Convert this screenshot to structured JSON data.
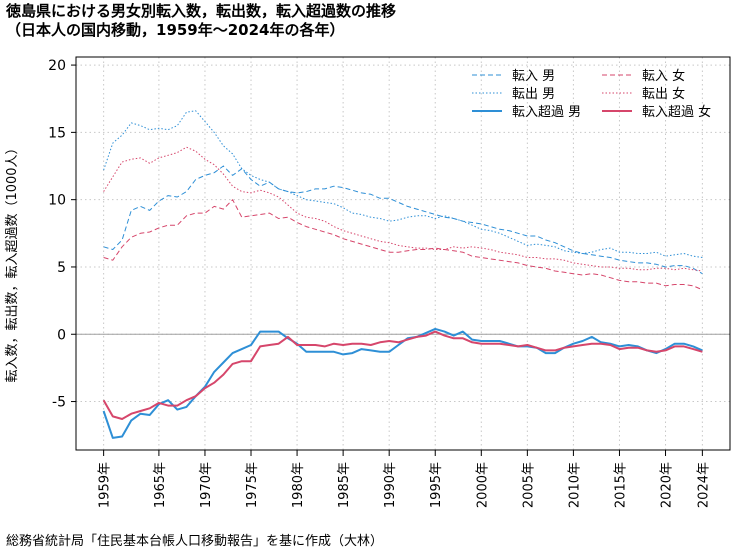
{
  "title_line1": "徳島県における男女別転入数，転出数，転入超過数の推移",
  "title_line2": "（日本人の国内移動，1959年～2024年の各年）",
  "footer": "総務省統計局「住民基本台帳人口移動報告」を基に作成（大林）",
  "chart_data": {
    "type": "line",
    "ylabel": "転入数，転出数，転入超過数（1000人）",
    "xlabel": "",
    "ylim": [
      -8,
      20
    ],
    "yticks": [
      -5,
      0,
      5,
      10,
      15,
      20
    ],
    "xlim": [
      1959,
      2024
    ],
    "xtick_labels": [
      "1959年",
      "1965年",
      "1970年",
      "1975年",
      "1980年",
      "1985年",
      "1990年",
      "1995年",
      "2000年",
      "2005年",
      "2010年",
      "2015年",
      "2020年",
      "2024年"
    ],
    "xtick_years": [
      1959,
      1965,
      1970,
      1975,
      1980,
      1985,
      1990,
      1995,
      2000,
      2005,
      2010,
      2015,
      2020,
      2024
    ],
    "grid": true,
    "legend_position": "top-right",
    "colors": {
      "male": "#2e8fd6",
      "female": "#d6466b"
    },
    "series": [
      {
        "name": "転入 男",
        "sex": "male",
        "style": "dashed",
        "x": [
          1959,
          1960,
          1961,
          1962,
          1963,
          1964,
          1965,
          1966,
          1967,
          1968,
          1969,
          1970,
          1971,
          1972,
          1973,
          1974,
          1975,
          1976,
          1977,
          1978,
          1979,
          1980,
          1981,
          1982,
          1983,
          1984,
          1985,
          1986,
          1987,
          1988,
          1989,
          1990,
          1991,
          1992,
          1993,
          1994,
          1995,
          1996,
          1997,
          1998,
          1999,
          2000,
          2001,
          2002,
          2003,
          2004,
          2005,
          2006,
          2007,
          2008,
          2009,
          2010,
          2011,
          2012,
          2013,
          2014,
          2015,
          2016,
          2017,
          2018,
          2019,
          2020,
          2021,
          2022,
          2023,
          2024
        ],
        "y": [
          6.5,
          6.3,
          7.0,
          9.2,
          9.5,
          9.2,
          9.9,
          10.3,
          10.2,
          10.6,
          11.5,
          11.8,
          12.0,
          12.5,
          11.8,
          12.3,
          11.5,
          11.0,
          11.3,
          10.8,
          10.6,
          10.5,
          10.6,
          10.8,
          10.8,
          11.0,
          10.9,
          10.7,
          10.5,
          10.4,
          10.1,
          10.1,
          9.8,
          9.5,
          9.3,
          9.1,
          8.9,
          8.7,
          8.6,
          8.4,
          8.3,
          8.2,
          8.0,
          7.8,
          7.7,
          7.5,
          7.3,
          7.3,
          7.0,
          6.8,
          6.5,
          6.2,
          6.0,
          5.9,
          5.8,
          5.7,
          5.5,
          5.4,
          5.3,
          5.3,
          5.2,
          5.0,
          5.1,
          5.1,
          4.9,
          4.5
        ]
      },
      {
        "name": "転出 男",
        "sex": "male",
        "style": "dotted",
        "x": [
          1959,
          1960,
          1961,
          1962,
          1963,
          1964,
          1965,
          1966,
          1967,
          1968,
          1969,
          1970,
          1971,
          1972,
          1973,
          1974,
          1975,
          1976,
          1977,
          1978,
          1979,
          1980,
          1981,
          1982,
          1983,
          1984,
          1985,
          1986,
          1987,
          1988,
          1989,
          1990,
          1991,
          1992,
          1993,
          1994,
          1995,
          1996,
          1997,
          1998,
          1999,
          2000,
          2001,
          2002,
          2003,
          2004,
          2005,
          2006,
          2007,
          2008,
          2009,
          2010,
          2011,
          2012,
          2013,
          2014,
          2015,
          2016,
          2017,
          2018,
          2019,
          2020,
          2021,
          2022,
          2023,
          2024
        ],
        "y": [
          12.2,
          14.2,
          14.8,
          15.7,
          15.5,
          15.2,
          15.3,
          15.2,
          15.5,
          16.5,
          16.6,
          15.8,
          15.0,
          14.0,
          13.4,
          12.3,
          11.8,
          11.5,
          11.3,
          10.8,
          10.6,
          10.3,
          10.0,
          9.9,
          9.8,
          9.7,
          9.4,
          9.0,
          8.9,
          8.7,
          8.6,
          8.4,
          8.5,
          8.7,
          8.8,
          8.8,
          8.6,
          8.8,
          8.6,
          8.4,
          8.1,
          7.8,
          7.7,
          7.5,
          7.2,
          6.9,
          6.6,
          6.7,
          6.6,
          6.5,
          6.2,
          6.1,
          6.0,
          6.1,
          6.3,
          6.4,
          6.1,
          6.1,
          6.0,
          6.0,
          6.1,
          5.8,
          5.9,
          6.0,
          5.8,
          5.7
        ]
      },
      {
        "name": "転入超過 男",
        "sex": "male",
        "style": "solid",
        "x": [
          1959,
          1960,
          1961,
          1962,
          1963,
          1964,
          1965,
          1966,
          1967,
          1968,
          1969,
          1970,
          1971,
          1972,
          1973,
          1974,
          1975,
          1976,
          1977,
          1978,
          1979,
          1980,
          1981,
          1982,
          1983,
          1984,
          1985,
          1986,
          1987,
          1988,
          1989,
          1990,
          1991,
          1992,
          1993,
          1994,
          1995,
          1996,
          1997,
          1998,
          1999,
          2000,
          2001,
          2002,
          2003,
          2004,
          2005,
          2006,
          2007,
          2008,
          2009,
          2010,
          2011,
          2012,
          2013,
          2014,
          2015,
          2016,
          2017,
          2018,
          2019,
          2020,
          2021,
          2022,
          2023,
          2024
        ],
        "y": [
          -5.7,
          -7.7,
          -7.6,
          -6.4,
          -5.9,
          -6.0,
          -5.2,
          -4.9,
          -5.6,
          -5.4,
          -4.6,
          -3.9,
          -2.8,
          -2.1,
          -1.4,
          -1.1,
          -0.8,
          0.2,
          0.2,
          0.2,
          -0.3,
          -0.7,
          -1.3,
          -1.3,
          -1.3,
          -1.3,
          -1.5,
          -1.4,
          -1.1,
          -1.2,
          -1.3,
          -1.3,
          -0.8,
          -0.3,
          -0.2,
          0.1,
          0.4,
          0.2,
          -0.1,
          0.2,
          -0.4,
          -0.5,
          -0.5,
          -0.5,
          -0.7,
          -0.9,
          -0.9,
          -1.0,
          -1.4,
          -1.4,
          -1.0,
          -0.7,
          -0.5,
          -0.2,
          -0.6,
          -0.7,
          -0.9,
          -0.8,
          -0.9,
          -1.2,
          -1.4,
          -1.1,
          -0.7,
          -0.7,
          -0.9,
          -1.2
        ]
      },
      {
        "name": "転入 女",
        "sex": "female",
        "style": "dashed",
        "x": [
          1959,
          1960,
          1961,
          1962,
          1963,
          1964,
          1965,
          1966,
          1967,
          1968,
          1969,
          1970,
          1971,
          1972,
          1973,
          1974,
          1975,
          1976,
          1977,
          1978,
          1979,
          1980,
          1981,
          1982,
          1983,
          1984,
          1985,
          1986,
          1987,
          1988,
          1989,
          1990,
          1991,
          1992,
          1993,
          1994,
          1995,
          1996,
          1997,
          1998,
          1999,
          2000,
          2001,
          2002,
          2003,
          2004,
          2005,
          2006,
          2007,
          2008,
          2009,
          2010,
          2011,
          2012,
          2013,
          2014,
          2015,
          2016,
          2017,
          2018,
          2019,
          2020,
          2021,
          2022,
          2023,
          2024
        ],
        "y": [
          5.7,
          5.5,
          6.5,
          7.2,
          7.5,
          7.6,
          7.9,
          8.1,
          8.1,
          8.8,
          9.0,
          9.0,
          9.5,
          9.3,
          10.0,
          8.7,
          8.8,
          8.9,
          9.0,
          8.6,
          8.7,
          8.3,
          8.0,
          7.8,
          7.6,
          7.4,
          7.1,
          6.9,
          6.7,
          6.5,
          6.3,
          6.1,
          6.1,
          6.2,
          6.3,
          6.3,
          6.4,
          6.3,
          6.2,
          6.1,
          5.8,
          5.7,
          5.6,
          5.5,
          5.4,
          5.3,
          5.1,
          5.0,
          4.9,
          4.7,
          4.6,
          4.5,
          4.4,
          4.5,
          4.4,
          4.2,
          4.0,
          3.9,
          3.9,
          3.8,
          3.8,
          3.6,
          3.7,
          3.7,
          3.6,
          3.3
        ]
      },
      {
        "name": "転出 女",
        "sex": "female",
        "style": "dotted",
        "x": [
          1959,
          1960,
          1961,
          1962,
          1963,
          1964,
          1965,
          1966,
          1967,
          1968,
          1969,
          1970,
          1971,
          1972,
          1973,
          1974,
          1975,
          1976,
          1977,
          1978,
          1979,
          1980,
          1981,
          1982,
          1983,
          1984,
          1985,
          1986,
          1987,
          1988,
          1989,
          1990,
          1991,
          1992,
          1993,
          1994,
          1995,
          1996,
          1997,
          1998,
          1999,
          2000,
          2001,
          2002,
          2003,
          2004,
          2005,
          2006,
          2007,
          2008,
          2009,
          2010,
          2011,
          2012,
          2013,
          2014,
          2015,
          2016,
          2017,
          2018,
          2019,
          2020,
          2021,
          2022,
          2023,
          2024
        ],
        "y": [
          10.6,
          11.7,
          12.8,
          13.0,
          13.1,
          12.7,
          13.1,
          13.3,
          13.5,
          13.9,
          13.6,
          13.0,
          12.6,
          11.9,
          11.0,
          10.6,
          10.5,
          10.7,
          10.5,
          10.2,
          9.6,
          9.0,
          8.7,
          8.6,
          8.4,
          8.0,
          7.7,
          7.5,
          7.3,
          7.1,
          6.9,
          6.8,
          6.6,
          6.5,
          6.4,
          6.4,
          6.3,
          6.3,
          6.5,
          6.4,
          6.5,
          6.4,
          6.3,
          6.1,
          6.0,
          5.9,
          5.7,
          5.7,
          5.6,
          5.6,
          5.5,
          5.3,
          5.2,
          5.1,
          5.0,
          5.0,
          4.9,
          4.9,
          4.8,
          4.8,
          4.9,
          4.9,
          4.8,
          4.9,
          4.8,
          4.7
        ]
      },
      {
        "name": "転入超過 女",
        "sex": "female",
        "style": "solid",
        "x": [
          1959,
          1960,
          1961,
          1962,
          1963,
          1964,
          1965,
          1966,
          1967,
          1968,
          1969,
          1970,
          1971,
          1972,
          1973,
          1974,
          1975,
          1976,
          1977,
          1978,
          1979,
          1980,
          1981,
          1982,
          1983,
          1984,
          1985,
          1986,
          1987,
          1988,
          1989,
          1990,
          1991,
          1992,
          1993,
          1994,
          1995,
          1996,
          1997,
          1998,
          1999,
          2000,
          2001,
          2002,
          2003,
          2004,
          2005,
          2006,
          2007,
          2008,
          2009,
          2010,
          2011,
          2012,
          2013,
          2014,
          2015,
          2016,
          2017,
          2018,
          2019,
          2020,
          2021,
          2022,
          2023,
          2024
        ],
        "y": [
          -4.9,
          -6.1,
          -6.3,
          -5.9,
          -5.7,
          -5.5,
          -5.1,
          -5.3,
          -5.3,
          -4.9,
          -4.6,
          -4.0,
          -3.6,
          -3.0,
          -2.2,
          -2.0,
          -2.0,
          -0.9,
          -0.8,
          -0.7,
          -0.2,
          -0.8,
          -0.8,
          -0.8,
          -0.9,
          -0.7,
          -0.8,
          -0.7,
          -0.7,
          -0.8,
          -0.6,
          -0.5,
          -0.6,
          -0.4,
          -0.2,
          -0.1,
          0.2,
          -0.1,
          -0.3,
          -0.3,
          -0.6,
          -0.7,
          -0.7,
          -0.7,
          -0.8,
          -0.9,
          -0.8,
          -1.0,
          -1.2,
          -1.2,
          -1.0,
          -0.9,
          -0.8,
          -0.7,
          -0.7,
          -0.8,
          -1.1,
          -1.0,
          -1.0,
          -1.2,
          -1.3,
          -1.2,
          -0.9,
          -0.9,
          -1.1,
          -1.3
        ]
      }
    ]
  }
}
